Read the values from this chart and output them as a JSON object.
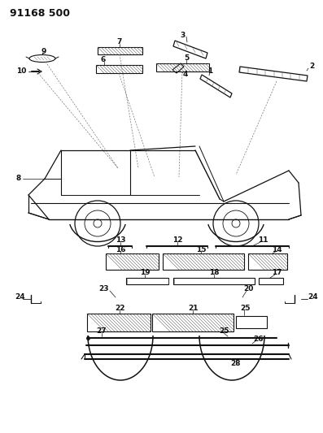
{
  "title": "91168 500",
  "bg_color": "#ffffff",
  "lc": "#111111",
  "fig_w": 3.97,
  "fig_h": 5.33,
  "dpi": 100
}
